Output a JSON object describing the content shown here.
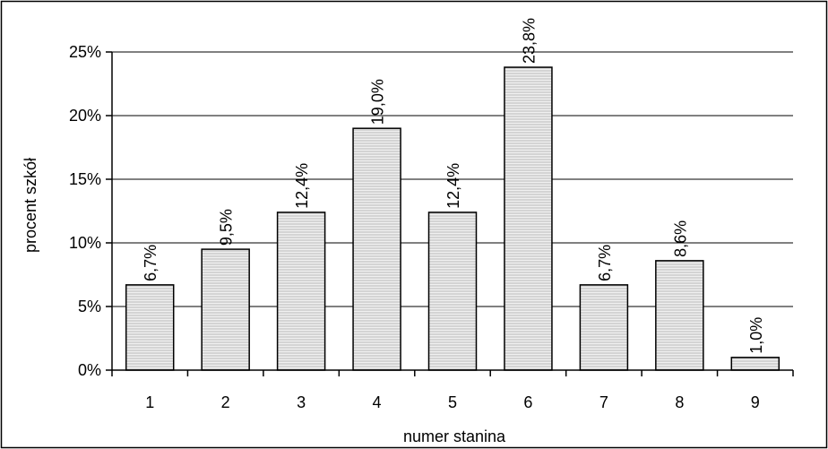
{
  "chart_data": {
    "type": "bar",
    "title": "",
    "xlabel": "numer stanina",
    "ylabel": "procent szkół",
    "categories": [
      "1",
      "2",
      "3",
      "4",
      "5",
      "6",
      "7",
      "8",
      "9"
    ],
    "values": [
      6.7,
      9.5,
      12.4,
      19.0,
      12.4,
      23.8,
      6.7,
      8.6,
      1.0
    ],
    "data_labels": [
      "6,7%",
      "9,5%",
      "12,4%",
      "19,0%",
      "12,4%",
      "23,8%",
      "6,7%",
      "8,6%",
      "1,0%"
    ],
    "ylim": [
      0,
      25
    ],
    "y_ticks": [
      0,
      5,
      10,
      15,
      20,
      25
    ],
    "y_tick_labels": [
      "0%",
      "5%",
      "10%",
      "15%",
      "20%",
      "25%"
    ],
    "grid": true,
    "legend": "none",
    "colors": {
      "bar_fill": "#e2e2e2",
      "bar_stroke": "#000000",
      "grid": "#000000",
      "frame": "#000000"
    }
  }
}
